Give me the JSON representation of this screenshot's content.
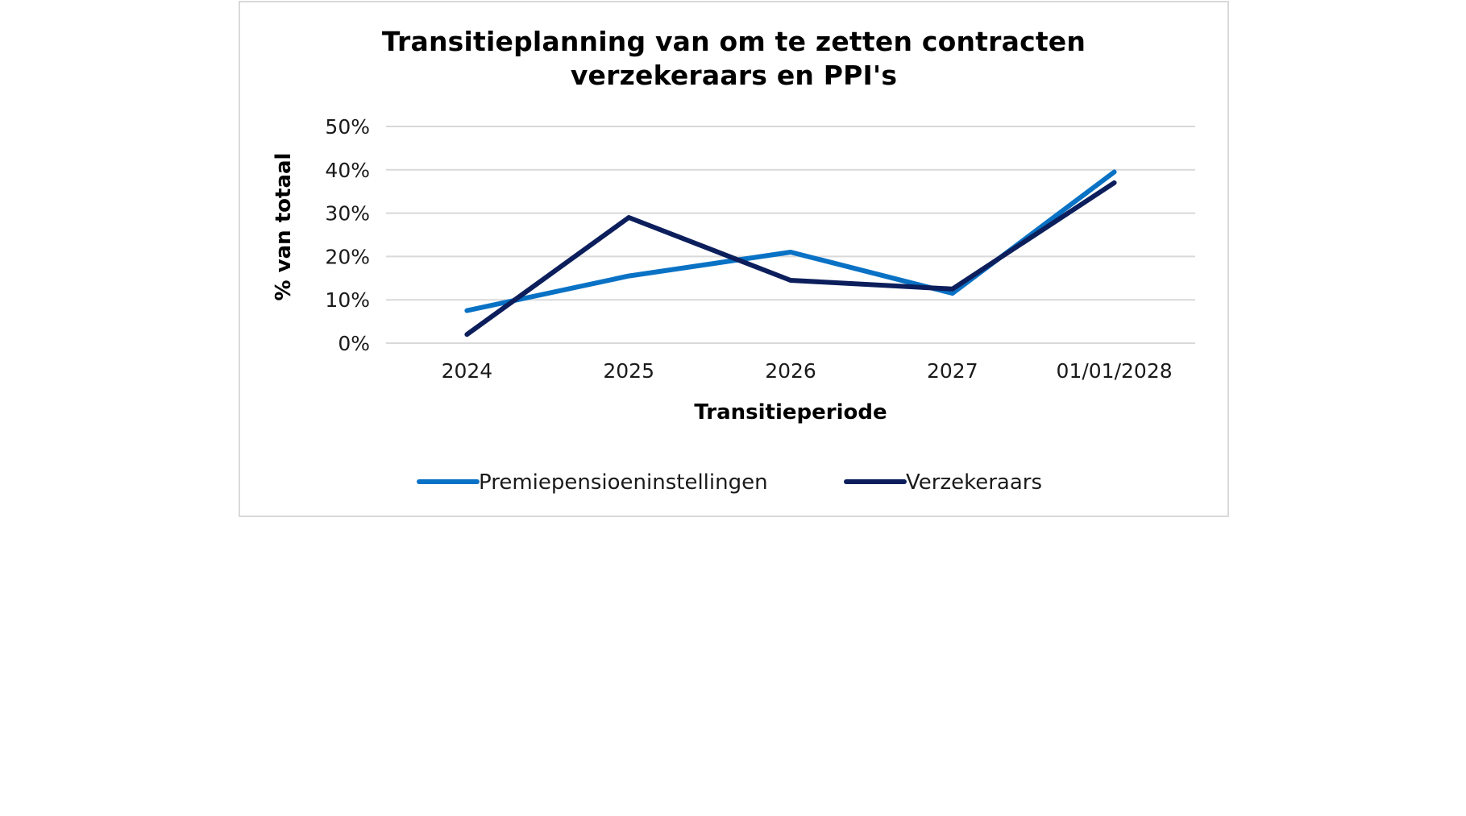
{
  "chart_data": {
    "type": "line",
    "title_lines": [
      "Transitieplanning van om te zetten contracten",
      "verzekeraars en PPI's"
    ],
    "xlabel": "Transitieperiode",
    "ylabel": "% van totaal",
    "categories": [
      "2024",
      "2025",
      "2026",
      "2027",
      "01/01/2028"
    ],
    "y_ticks": [
      "0%",
      "10%",
      "20%",
      "30%",
      "40%",
      "50%"
    ],
    "ylim": [
      0,
      50
    ],
    "grid": true,
    "legend_position": "bottom",
    "series": [
      {
        "name": "Premiepensioeninstellingen",
        "color": "#0a72c5",
        "values": [
          7.5,
          15.5,
          21,
          11.5,
          39.5
        ]
      },
      {
        "name": "Verzekeraars",
        "color": "#0c1f5c",
        "values": [
          2,
          29,
          14.5,
          12.5,
          37
        ]
      }
    ]
  }
}
